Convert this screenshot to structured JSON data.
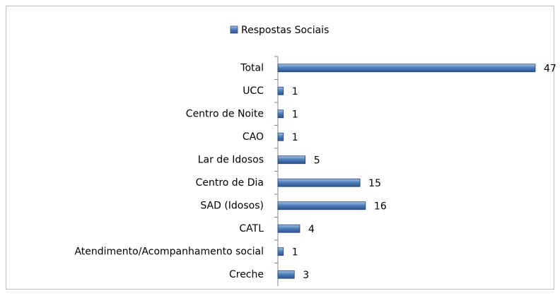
{
  "chart_data": {
    "type": "bar",
    "orientation": "horizontal",
    "categories": [
      "Total",
      "UCC",
      "Centro de Noite",
      "CAO",
      "Lar de Idosos",
      "Centro de Dia",
      "SAD (Idosos)",
      "CATL",
      "Atendimento/Acompanhamento social",
      "Creche"
    ],
    "series": [
      {
        "name": "Respostas Sociais",
        "color": "#4f81bd",
        "values": [
          47,
          1,
          1,
          1,
          5,
          15,
          16,
          4,
          1,
          3
        ]
      }
    ],
    "legend": "top"
  }
}
